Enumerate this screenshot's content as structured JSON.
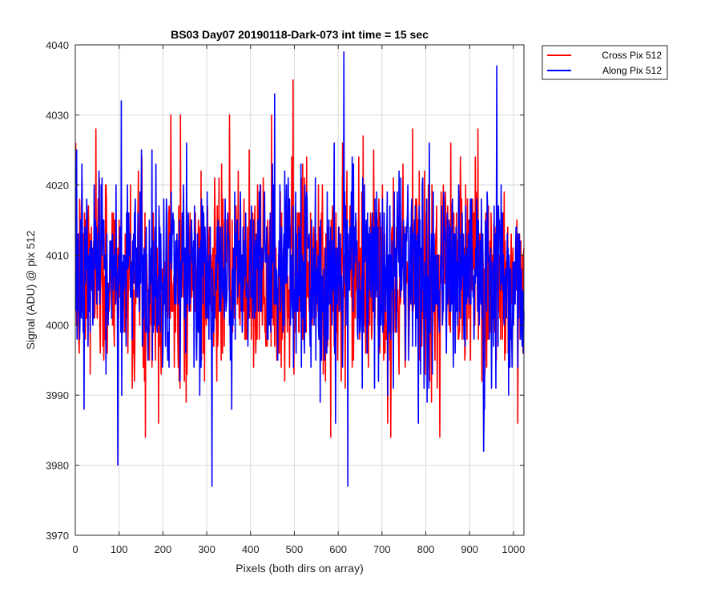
{
  "chart_data": {
    "type": "line",
    "title": "BS03 Day07 20190118-Dark-073 int time = 15 sec",
    "xlabel": "Pixels (both dirs on array)",
    "ylabel": "Signal (ADU) @ pix 512",
    "xlim": [
      0,
      1024
    ],
    "ylim": [
      3970,
      4040
    ],
    "xticks": [
      0,
      100,
      200,
      300,
      400,
      500,
      600,
      700,
      800,
      900,
      1000
    ],
    "yticks": [
      3970,
      3980,
      3990,
      4000,
      4010,
      4020,
      4030,
      4040
    ],
    "grid": true,
    "legend_position": "outside-top-right",
    "series": [
      {
        "name": "Cross Pix 512",
        "color": "#ff0000",
        "x_start": 1,
        "x_step": 1,
        "noise": {
          "mean": 4007,
          "std": 7,
          "min": 3984,
          "max": 4035,
          "seed": 7
        },
        "key_points": [
          {
            "x": 100,
            "y": 4015
          },
          {
            "x": 160,
            "y": 3984
          },
          {
            "x": 240,
            "y": 4030
          },
          {
            "x": 448,
            "y": 4030
          },
          {
            "x": 497,
            "y": 4035
          },
          {
            "x": 583,
            "y": 3984
          },
          {
            "x": 720,
            "y": 3984
          },
          {
            "x": 770,
            "y": 4028
          },
          {
            "x": 832,
            "y": 3984
          }
        ]
      },
      {
        "name": "Along Pix 512",
        "color": "#0000ff",
        "x_start": 1,
        "x_step": 1,
        "noise": {
          "mean": 4007,
          "std": 7,
          "min": 3977,
          "max": 4039,
          "seed": 13
        },
        "key_points": [
          {
            "x": 97,
            "y": 3980
          },
          {
            "x": 105,
            "y": 4032
          },
          {
            "x": 312,
            "y": 3977
          },
          {
            "x": 455,
            "y": 4033
          },
          {
            "x": 613,
            "y": 4039
          },
          {
            "x": 622,
            "y": 3977
          },
          {
            "x": 932,
            "y": 3982
          },
          {
            "x": 962,
            "y": 4037
          }
        ]
      }
    ]
  }
}
